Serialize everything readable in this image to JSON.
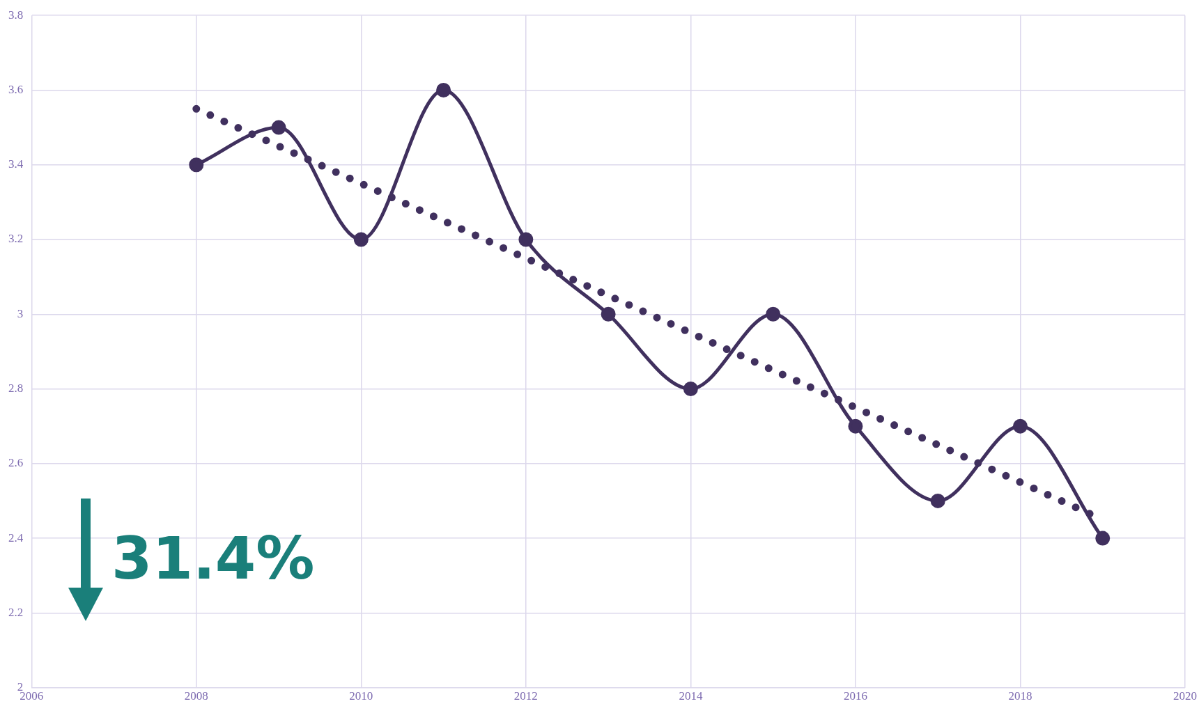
{
  "chart_data": {
    "type": "line",
    "x": [
      2008,
      2009,
      2010,
      2011,
      2012,
      2013,
      2014,
      2015,
      2016,
      2017,
      2018,
      2019
    ],
    "series": [
      {
        "color": "#40305e",
        "values": [
          3.4,
          3.5,
          3.2,
          3.6,
          3.2,
          3.0,
          2.8,
          3.0,
          2.7,
          2.5,
          2.7,
          2.4
        ],
        "marker": "circle",
        "line_style": "solid"
      },
      {
        "color": "#40305e",
        "x": [
          2008,
          2019
        ],
        "values": [
          3.55,
          2.45
        ],
        "marker": "none",
        "line_style": "dotted"
      }
    ],
    "xlim": [
      2006,
      2020
    ],
    "xticks": [
      2006,
      2008,
      2010,
      2012,
      2014,
      2016,
      2018,
      2020
    ],
    "ylim": [
      2,
      3.8
    ],
    "yticks": [
      2,
      2.2,
      2.4,
      2.6,
      2.8,
      3,
      3.2,
      3.4,
      3.6,
      3.8
    ],
    "grid": true,
    "legend": false,
    "annotations": [
      "31.4%"
    ]
  }
}
